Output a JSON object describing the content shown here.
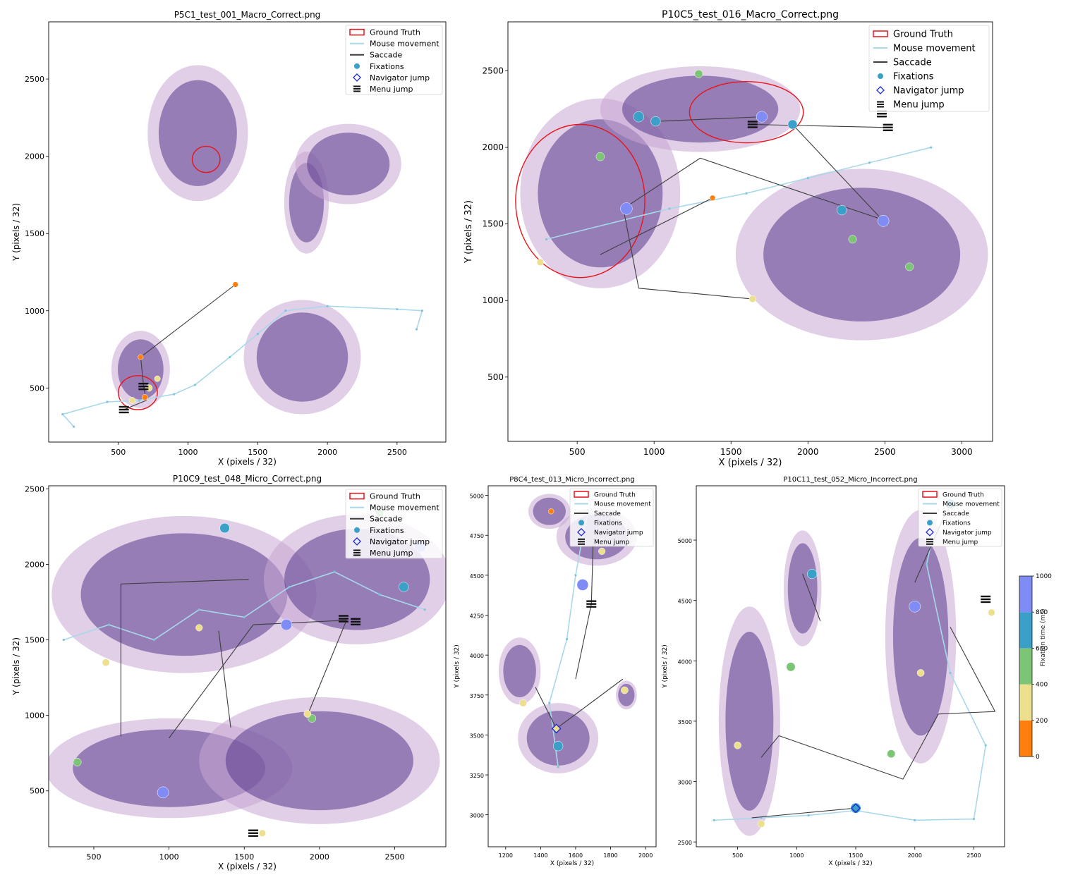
{
  "legend": {
    "ground_truth": "Ground Truth",
    "mouse_movement": "Mouse movement",
    "saccade": "Saccade",
    "fixations": "Fixations",
    "navigator_jump": "Navigator jump",
    "menu_jump": "Menu jump"
  },
  "colors": {
    "ground_truth": "#e8141b",
    "mouse": "#a8d8ea",
    "saccade": "#3d3d3d",
    "navigator": "#1f2bd6",
    "tissue_dark": "#5a3a8e",
    "tissue_light": "#c9a6d4"
  },
  "colorbar": {
    "label": "Fixation time (ms)",
    "ticks": [
      "0",
      "200",
      "400",
      "600",
      "800",
      "1000"
    ],
    "bins": [
      {
        "from": 0,
        "to": 200,
        "color": "#ff7f0e"
      },
      {
        "from": 200,
        "to": 400,
        "color": "#ecdf8e"
      },
      {
        "from": 400,
        "to": 600,
        "color": "#7cc576"
      },
      {
        "from": 600,
        "to": 800,
        "color": "#3aa0c8"
      },
      {
        "from": 800,
        "to": 1000,
        "color": "#7f8cf5"
      }
    ]
  },
  "chart_data": [
    {
      "type": "scatter",
      "title": "P5C1_test_001_Macro_Correct.png",
      "xlabel": "X (pixels / 32)",
      "ylabel": "Y (pixels / 32)",
      "xlim": [
        0,
        2850
      ],
      "ylim": [
        2870,
        150
      ],
      "xticks": [
        500,
        1000,
        1500,
        2000,
        2500
      ],
      "yticks": [
        500,
        1000,
        1500,
        2000,
        2500
      ],
      "legend_position": "top-right",
      "ground_truth_regions": [
        {
          "cx": 640,
          "cy": 470,
          "rx": 140,
          "ry": 110
        },
        {
          "cx": 1130,
          "cy": 1980,
          "rx": 100,
          "ry": 85
        }
      ],
      "tissue_regions": [
        {
          "cx": 660,
          "cy": 620,
          "rx": 210,
          "ry": 250
        },
        {
          "cx": 1820,
          "cy": 700,
          "rx": 420,
          "ry": 370
        },
        {
          "cx": 1070,
          "cy": 2150,
          "rx": 360,
          "ry": 440
        },
        {
          "cx": 1850,
          "cy": 1700,
          "rx": 160,
          "ry": 330
        },
        {
          "cx": 2150,
          "cy": 1950,
          "rx": 380,
          "ry": 260
        }
      ],
      "mouse_path": [
        [
          180,
          250
        ],
        [
          100,
          330
        ],
        [
          420,
          410
        ],
        [
          650,
          420
        ],
        [
          900,
          460
        ],
        [
          1050,
          520
        ],
        [
          1300,
          700
        ],
        [
          1500,
          850
        ],
        [
          1700,
          1000
        ],
        [
          2000,
          1030
        ],
        [
          2500,
          1010
        ],
        [
          2680,
          1000
        ],
        [
          2640,
          880
        ]
      ],
      "saccades": [
        [
          [
            540,
            360
          ],
          [
            700,
            420
          ]
        ],
        [
          [
            700,
            420
          ],
          [
            680,
            520
          ]
        ],
        [
          [
            680,
            520
          ],
          [
            660,
            700
          ]
        ],
        [
          [
            660,
            700
          ],
          [
            1340,
            1170
          ]
        ]
      ],
      "fixations": [
        {
          "x": 600,
          "y": 420,
          "ms": 250
        },
        {
          "x": 690,
          "y": 440,
          "ms": 180
        },
        {
          "x": 720,
          "y": 500,
          "ms": 300
        },
        {
          "x": 660,
          "y": 700,
          "ms": 120
        },
        {
          "x": 1340,
          "y": 1170,
          "ms": 150
        },
        {
          "x": 780,
          "y": 560,
          "ms": 200
        }
      ],
      "navigator_jumps": [],
      "menu_jumps": [
        {
          "x": 540,
          "y": 360
        },
        {
          "x": 680,
          "y": 510
        }
      ]
    },
    {
      "type": "scatter",
      "title": "P10C5_test_016_Macro_Correct.png",
      "xlabel": "X (pixels / 32)",
      "ylabel": "Y (pixels / 32)",
      "xlim": [
        50,
        3200
      ],
      "ylim": [
        2820,
        80
      ],
      "xticks": [
        500,
        1000,
        1500,
        2000,
        2500,
        3000
      ],
      "yticks": [
        500,
        1000,
        1500,
        2000,
        2500
      ],
      "legend_position": "top-right",
      "ground_truth_regions": [
        {
          "cx": 520,
          "cy": 1650,
          "rx": 420,
          "ry": 500
        },
        {
          "cx": 1600,
          "cy": 2230,
          "rx": 370,
          "ry": 200
        }
      ],
      "tissue_regions": [
        {
          "cx": 650,
          "cy": 1700,
          "rx": 520,
          "ry": 620
        },
        {
          "cx": 1300,
          "cy": 2250,
          "rx": 650,
          "ry": 280
        },
        {
          "cx": 2350,
          "cy": 1300,
          "rx": 820,
          "ry": 560
        }
      ],
      "mouse_path": [
        [
          300,
          1400
        ],
        [
          700,
          1500
        ],
        [
          1100,
          1600
        ],
        [
          1600,
          1700
        ],
        [
          2000,
          1800
        ],
        [
          2400,
          1900
        ],
        [
          2800,
          2000
        ]
      ],
      "saccades": [
        [
          [
            900,
            1080
          ],
          [
            1640,
            1010
          ]
        ],
        [
          [
            900,
            1080
          ],
          [
            800,
            1600
          ]
        ],
        [
          [
            800,
            1600
          ],
          [
            1300,
            1930
          ]
        ],
        [
          [
            1300,
            1930
          ],
          [
            2480,
            1530
          ]
        ],
        [
          [
            2480,
            1530
          ],
          [
            1900,
            2150
          ]
        ],
        [
          [
            1640,
            2150
          ],
          [
            2520,
            2130
          ]
        ],
        [
          [
            1010,
            2170
          ],
          [
            1700,
            2200
          ]
        ],
        [
          [
            650,
            1300
          ],
          [
            1380,
            1670
          ]
        ]
      ],
      "fixations": [
        {
          "x": 260,
          "y": 1250,
          "ms": 300
        },
        {
          "x": 820,
          "y": 1600,
          "ms": 900
        },
        {
          "x": 650,
          "y": 1940,
          "ms": 500
        },
        {
          "x": 1290,
          "y": 2480,
          "ms": 450
        },
        {
          "x": 2490,
          "y": 1520,
          "ms": 850
        },
        {
          "x": 2220,
          "y": 1590,
          "ms": 650
        },
        {
          "x": 2660,
          "y": 1220,
          "ms": 450
        },
        {
          "x": 1010,
          "y": 2170,
          "ms": 650
        },
        {
          "x": 900,
          "y": 2200,
          "ms": 750
        },
        {
          "x": 1900,
          "y": 2150,
          "ms": 600
        },
        {
          "x": 1640,
          "y": 1010,
          "ms": 300
        },
        {
          "x": 1700,
          "y": 2200,
          "ms": 800
        },
        {
          "x": 1380,
          "y": 1670,
          "ms": 150
        },
        {
          "x": 2290,
          "y": 1400,
          "ms": 450
        }
      ],
      "navigator_jumps": [],
      "menu_jumps": [
        {
          "x": 1640,
          "y": 2150
        },
        {
          "x": 2520,
          "y": 2130
        },
        {
          "x": 2480,
          "y": 2220
        }
      ]
    },
    {
      "type": "scatter",
      "title": "P10C9_test_048_Micro_Correct.png",
      "xlabel": "X (pixels / 32)",
      "ylabel": "Y (pixels / 32)",
      "xlim": [
        200,
        2840
      ],
      "ylim": [
        2520,
        130
      ],
      "xticks": [
        500,
        1000,
        1500,
        2000,
        2500
      ],
      "yticks": [
        500,
        1000,
        1500,
        2000,
        2500
      ],
      "legend_position": "top-right",
      "ground_truth_regions": [],
      "tissue_regions": [
        {
          "cx": 1000,
          "cy": 650,
          "rx": 820,
          "ry": 330
        },
        {
          "cx": 2000,
          "cy": 700,
          "rx": 800,
          "ry": 420
        },
        {
          "cx": 1100,
          "cy": 1800,
          "rx": 880,
          "ry": 520
        },
        {
          "cx": 2250,
          "cy": 1900,
          "rx": 620,
          "ry": 430
        }
      ],
      "mouse_path": [
        [
          300,
          1500
        ],
        [
          600,
          1600
        ],
        [
          900,
          1500
        ],
        [
          1200,
          1700
        ],
        [
          1500,
          1650
        ],
        [
          1800,
          1850
        ],
        [
          2100,
          1950
        ],
        [
          2400,
          1800
        ],
        [
          2700,
          1700
        ]
      ],
      "saccades": [
        [
          [
            680,
            860
          ],
          [
            680,
            1870
          ]
        ],
        [
          [
            680,
            1870
          ],
          [
            1530,
            1900
          ]
        ],
        [
          [
            1000,
            850
          ],
          [
            1560,
            1600
          ]
        ],
        [
          [
            1410,
            920
          ],
          [
            1330,
            1560
          ]
        ],
        [
          [
            2180,
            1630
          ],
          [
            1920,
            1000
          ]
        ],
        [
          [
            1560,
            1600
          ],
          [
            2180,
            1630
          ]
        ]
      ],
      "fixations": [
        {
          "x": 960,
          "y": 490,
          "ms": 850
        },
        {
          "x": 390,
          "y": 690,
          "ms": 450
        },
        {
          "x": 1950,
          "y": 980,
          "ms": 450
        },
        {
          "x": 2670,
          "y": 2120,
          "ms": 900
        },
        {
          "x": 2560,
          "y": 1850,
          "ms": 650
        },
        {
          "x": 1370,
          "y": 2240,
          "ms": 650
        },
        {
          "x": 2400,
          "y": 2340,
          "ms": 450
        },
        {
          "x": 1200,
          "y": 1580,
          "ms": 300
        },
        {
          "x": 1780,
          "y": 1600,
          "ms": 800
        },
        {
          "x": 580,
          "y": 1350,
          "ms": 350
        },
        {
          "x": 1620,
          "y": 220,
          "ms": 300
        },
        {
          "x": 1920,
          "y": 1010,
          "ms": 350
        }
      ],
      "navigator_jumps": [],
      "menu_jumps": [
        {
          "x": 1560,
          "y": 220
        },
        {
          "x": 2160,
          "y": 1640
        },
        {
          "x": 2240,
          "y": 1620
        }
      ]
    },
    {
      "type": "scatter",
      "title": "P8C4_test_013_Micro_Incorrect.png",
      "xlabel": "X (pixels / 32)",
      "ylabel": "Y (pixels / 32)",
      "xlim": [
        1100,
        2060
      ],
      "ylim": [
        5060,
        2800
      ],
      "xticks": [
        1200,
        1400,
        1600,
        1800,
        2000
      ],
      "yticks": [
        3000,
        3250,
        3500,
        3750,
        4000,
        4250,
        4500,
        4750,
        5000
      ],
      "legend_position": "top-right",
      "ground_truth_regions": [],
      "tissue_regions": [
        {
          "cx": 1500,
          "cy": 3480,
          "rx": 230,
          "ry": 220
        },
        {
          "cx": 1280,
          "cy": 3900,
          "rx": 120,
          "ry": 210
        },
        {
          "cx": 1890,
          "cy": 3750,
          "rx": 60,
          "ry": 90
        },
        {
          "cx": 1720,
          "cy": 4740,
          "rx": 230,
          "ry": 180
        },
        {
          "cx": 1450,
          "cy": 4900,
          "rx": 120,
          "ry": 110
        }
      ],
      "mouse_path": [
        [
          1500,
          3300
        ],
        [
          1450,
          3700
        ],
        [
          1550,
          4100
        ],
        [
          1600,
          4500
        ],
        [
          1650,
          4800
        ],
        [
          1700,
          5000
        ]
      ],
      "saccades": [
        [
          [
            1490,
            3540
          ],
          [
            1370,
            3800
          ]
        ],
        [
          [
            1490,
            3540
          ],
          [
            1870,
            3850
          ]
        ],
        [
          [
            1600,
            3850
          ],
          [
            1690,
            4320
          ]
        ],
        [
          [
            1690,
            4320
          ],
          [
            1700,
            4700
          ]
        ]
      ],
      "fixations": [
        {
          "x": 1490,
          "y": 3540,
          "ms": 300
        },
        {
          "x": 1300,
          "y": 3700,
          "ms": 350
        },
        {
          "x": 1640,
          "y": 4440,
          "ms": 850
        },
        {
          "x": 1500,
          "y": 3430,
          "ms": 650
        },
        {
          "x": 1880,
          "y": 3780,
          "ms": 350
        },
        {
          "x": 1750,
          "y": 4650,
          "ms": 300
        },
        {
          "x": 1460,
          "y": 4900,
          "ms": 150
        }
      ],
      "navigator_jumps": [
        {
          "x": 1490,
          "y": 3540
        }
      ],
      "menu_jumps": [
        {
          "x": 1690,
          "y": 4320
        }
      ]
    },
    {
      "type": "scatter",
      "title": "P10C11_test_052_Micro_Incorrect.png",
      "xlabel": "X (pixels / 32)",
      "ylabel": "Y (pixels / 32)",
      "xlim": [
        150,
        2760
      ],
      "ylim": [
        5450,
        2460
      ],
      "xticks": [
        500,
        1000,
        1500,
        2000,
        2500
      ],
      "yticks": [
        2500,
        3000,
        3500,
        4000,
        4500,
        5000
      ],
      "legend_position": "top-right",
      "ground_truth_regions": [],
      "tissue_regions": [
        {
          "cx": 600,
          "cy": 3500,
          "rx": 260,
          "ry": 950
        },
        {
          "cx": 1050,
          "cy": 4600,
          "rx": 160,
          "ry": 480
        },
        {
          "cx": 2050,
          "cy": 4200,
          "rx": 300,
          "ry": 1050
        }
      ],
      "mouse_path": [
        [
          300,
          2680
        ],
        [
          700,
          2700
        ],
        [
          1100,
          2720
        ],
        [
          1500,
          2760
        ],
        [
          2000,
          2680
        ],
        [
          2500,
          2690
        ],
        [
          2600,
          3300
        ],
        [
          2300,
          3900
        ],
        [
          2100,
          4800
        ],
        [
          2200,
          5250
        ]
      ],
      "saccades": [
        [
          [
            620,
            2700
          ],
          [
            1500,
            2780
          ]
        ],
        [
          [
            700,
            3200
          ],
          [
            850,
            3380
          ]
        ],
        [
          [
            850,
            3380
          ],
          [
            1900,
            3020
          ]
        ],
        [
          [
            1900,
            3020
          ],
          [
            2200,
            3560
          ]
        ],
        [
          [
            2200,
            3560
          ],
          [
            2680,
            3580
          ]
        ],
        [
          [
            2680,
            3580
          ],
          [
            2300,
            4280
          ]
        ],
        [
          [
            1200,
            4330
          ],
          [
            1050,
            4720
          ]
        ],
        [
          [
            2000,
            4650
          ],
          [
            2250,
            5200
          ]
        ]
      ],
      "fixations": [
        {
          "x": 1500,
          "y": 2780,
          "ms": 700
        },
        {
          "x": 1130,
          "y": 4720,
          "ms": 650
        },
        {
          "x": 2000,
          "y": 4450,
          "ms": 850
        },
        {
          "x": 2300,
          "y": 5300,
          "ms": 650
        },
        {
          "x": 1800,
          "y": 3230,
          "ms": 450
        },
        {
          "x": 500,
          "y": 3300,
          "ms": 350
        },
        {
          "x": 950,
          "y": 3950,
          "ms": 550
        },
        {
          "x": 2050,
          "y": 3900,
          "ms": 350
        },
        {
          "x": 2650,
          "y": 4400,
          "ms": 300
        },
        {
          "x": 700,
          "y": 2650,
          "ms": 350
        }
      ],
      "navigator_jumps": [
        {
          "x": 1500,
          "y": 2780
        }
      ],
      "menu_jumps": [
        {
          "x": 2600,
          "y": 4510
        }
      ]
    }
  ]
}
